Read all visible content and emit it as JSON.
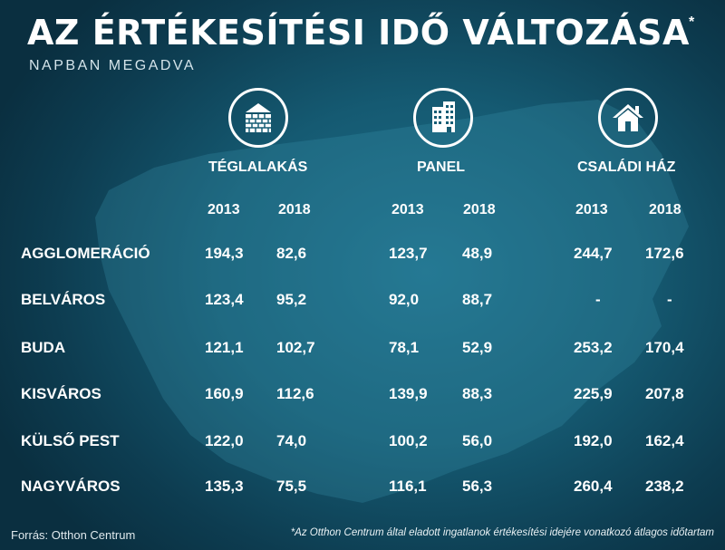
{
  "title": "AZ ÉRTÉKESÍTÉSI IDŐ VÁLTOZÁSA",
  "title_mark": "*",
  "subtitle": "NAPBAN MEGADVA",
  "chart_data": {
    "type": "table",
    "title": "AZ ÉRTÉKESÍTÉSI IDŐ VÁLTOZÁSA",
    "subtitle": "NAPBAN MEGADVA",
    "groups": [
      {
        "name": "TÉGLALAKÁS",
        "icon": "brick-building-icon"
      },
      {
        "name": "PANEL",
        "icon": "panel-building-icon"
      },
      {
        "name": "CSALÁDI HÁZ",
        "icon": "house-icon"
      }
    ],
    "years": [
      "2013",
      "2018"
    ],
    "rows": [
      {
        "label": "AGGLOMERÁCIÓ",
        "values": [
          "194,3",
          "82,6",
          "123,7",
          "48,9",
          "244,7",
          "172,6"
        ]
      },
      {
        "label": "BELVÁROS",
        "values": [
          "123,4",
          "95,2",
          "92,0",
          "88,7",
          "-",
          "-"
        ]
      },
      {
        "label": "BUDA",
        "values": [
          "121,1",
          "102,7",
          "78,1",
          "52,9",
          "253,2",
          "170,4"
        ]
      },
      {
        "label": "KISVÁROS",
        "values": [
          "160,9",
          "112,6",
          "139,9",
          "88,3",
          "225,9",
          "207,8"
        ]
      },
      {
        "label": "KÜLSŐ PEST",
        "values": [
          "122,0",
          "74,0",
          "100,2",
          "56,0",
          "192,0",
          "162,4"
        ]
      },
      {
        "label": "NAGYVÁROS",
        "values": [
          "135,3",
          "75,5",
          "116,1",
          "56,3",
          "260,4",
          "238,2"
        ]
      }
    ]
  },
  "source": "Forrás: Otthon Centrum",
  "footnote": "*Az Otthon Centrum által eladott ingatlanok értékesítési idejére vonatkozó átlagos időtartam",
  "colors": {
    "background": "#155a72",
    "map": "#2a7f99",
    "text": "#ffffff"
  }
}
